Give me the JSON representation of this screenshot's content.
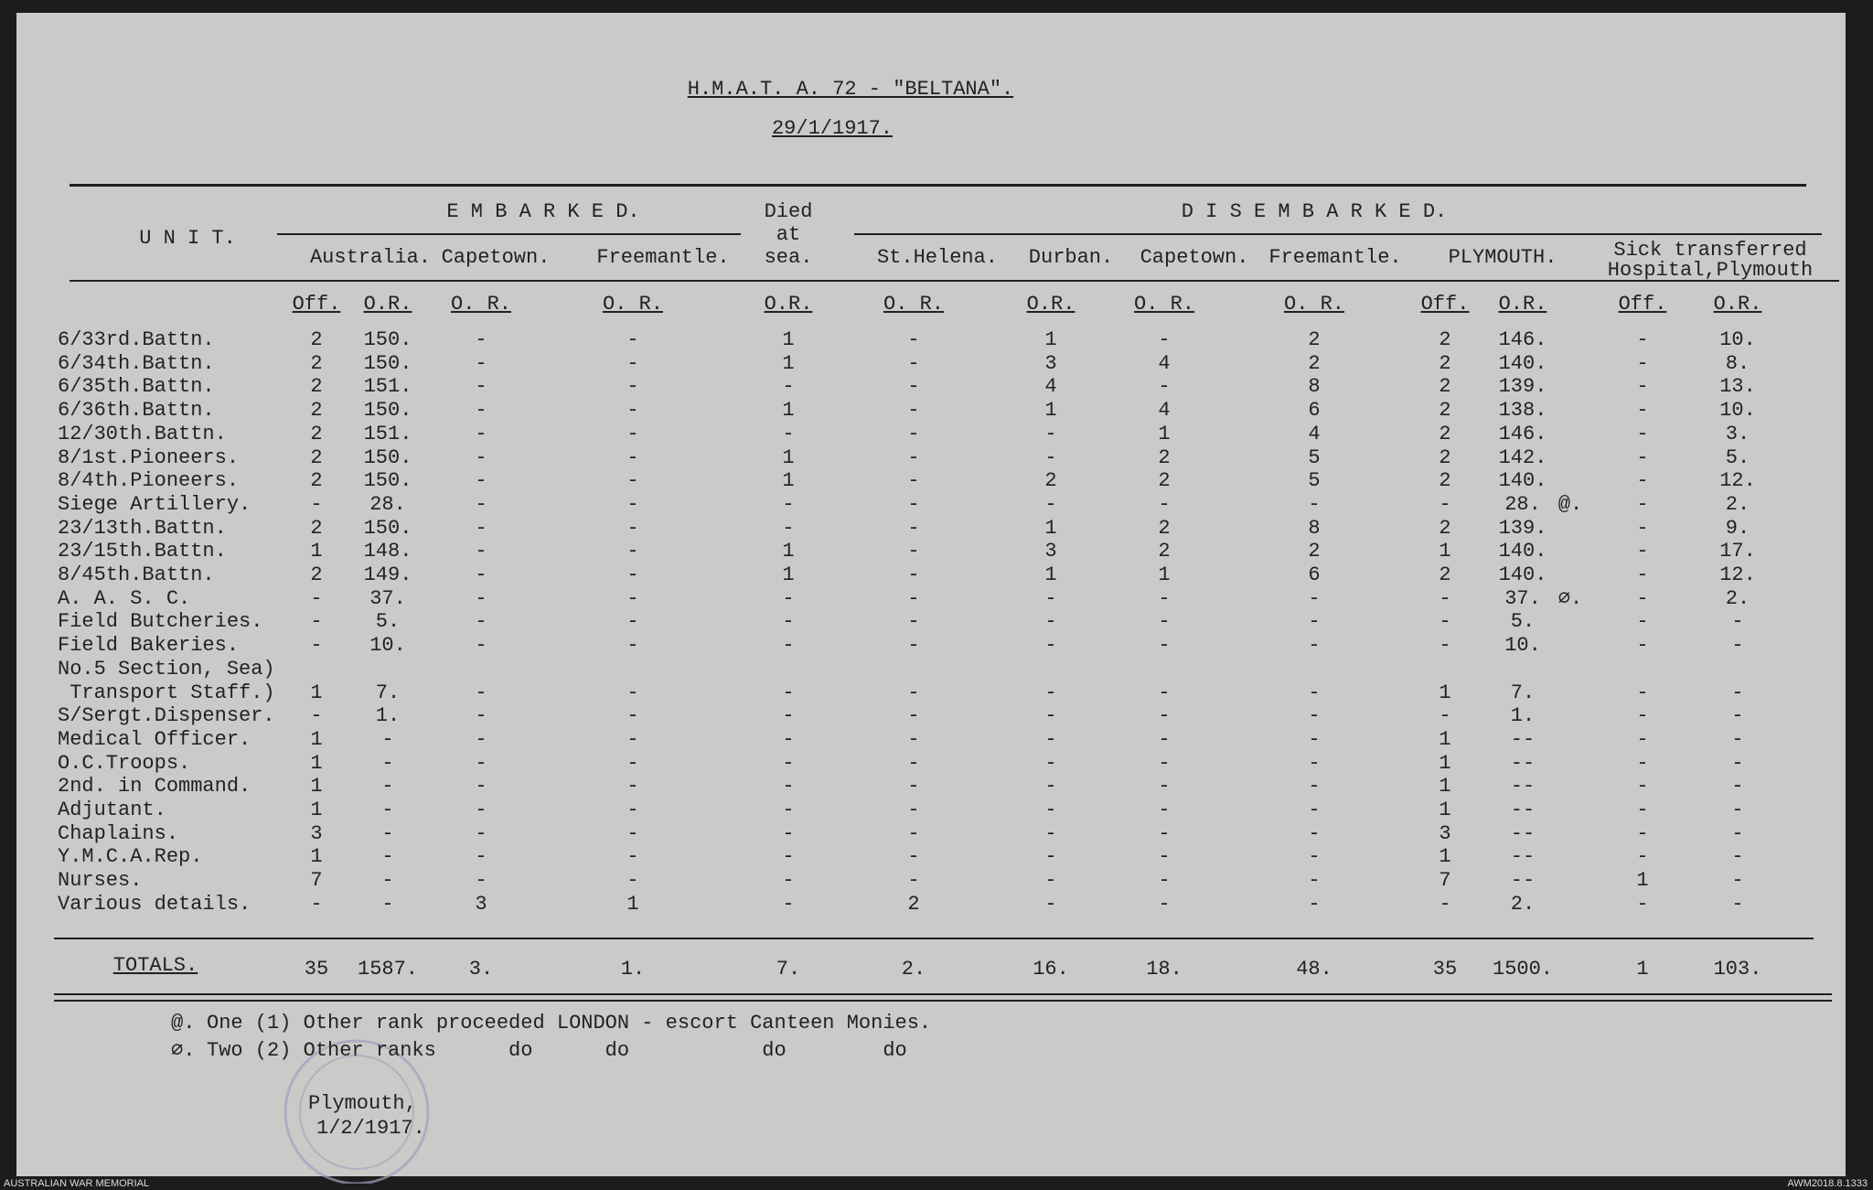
{
  "header": {
    "title": "H.M.A.T. A. 72 - \"BELTANA\".",
    "date": "29/1/1917."
  },
  "columns": {
    "unit": "U N I T.",
    "embarked": "E M B A R K E D.",
    "died": [
      "Died",
      "at",
      "sea."
    ],
    "disembarked": "D I S E M B A R K E D.",
    "sick": [
      "Sick transferred",
      "Hospital,Plymouth"
    ],
    "ports": [
      "Australia.",
      "Capetown.",
      "Freemantle.",
      "St.Helena.",
      "Durban.",
      "Capetown.",
      "Freemantle.",
      "PLYMOUTH."
    ],
    "subheaders": [
      "Off.",
      "O.R.",
      "O. R.",
      "O. R.",
      "O.R.",
      "O. R.",
      "O.R.",
      "O. R.",
      "O. R.",
      "Off.",
      "O.R.",
      "Off.",
      "O.R."
    ]
  },
  "rows": [
    {
      "unit": "6/33rd.Battn.",
      "cells": [
        "2",
        "150.",
        "-",
        "-",
        "1",
        "-",
        "1",
        "-",
        "2",
        "2",
        "146.",
        "-",
        "10."
      ]
    },
    {
      "unit": "6/34th.Battn.",
      "cells": [
        "2",
        "150.",
        "-",
        "-",
        "1",
        "-",
        "3",
        "4",
        "2",
        "2",
        "140.",
        "-",
        "8."
      ]
    },
    {
      "unit": "6/35th.Battn.",
      "cells": [
        "2",
        "151.",
        "-",
        "-",
        "-",
        "-",
        "4",
        "-",
        "8",
        "2",
        "139.",
        "-",
        "13."
      ]
    },
    {
      "unit": "6/36th.Battn.",
      "cells": [
        "2",
        "150.",
        "-",
        "-",
        "1",
        "-",
        "1",
        "4",
        "6",
        "2",
        "138.",
        "-",
        "10."
      ]
    },
    {
      "unit": "12/30th.Battn.",
      "cells": [
        "2",
        "151.",
        "-",
        "-",
        "-",
        "-",
        "-",
        "1",
        "4",
        "2",
        "146.",
        "-",
        "3."
      ]
    },
    {
      "unit": "8/1st.Pioneers.",
      "cells": [
        "2",
        "150.",
        "-",
        "-",
        "1",
        "-",
        "-",
        "2",
        "5",
        "2",
        "142.",
        "-",
        "5."
      ]
    },
    {
      "unit": "8/4th.Pioneers.",
      "cells": [
        "2",
        "150.",
        "-",
        "-",
        "1",
        "-",
        "2",
        "2",
        "5",
        "2",
        "140.",
        "-",
        "12."
      ]
    },
    {
      "unit": "Siege Artillery.",
      "cells": [
        "-",
        "28.",
        "-",
        "-",
        "-",
        "-",
        "-",
        "-",
        "-",
        "-",
        "28.",
        "-",
        "2."
      ],
      "mark": "@."
    },
    {
      "unit": "23/13th.Battn.",
      "cells": [
        "2",
        "150.",
        "-",
        "-",
        "-",
        "-",
        "1",
        "2",
        "8",
        "2",
        "139.",
        "-",
        "9."
      ]
    },
    {
      "unit": "23/15th.Battn.",
      "cells": [
        "1",
        "148.",
        "-",
        "-",
        "1",
        "-",
        "3",
        "2",
        "2",
        "1",
        "140.",
        "-",
        "17."
      ]
    },
    {
      "unit": "8/45th.Battn.",
      "cells": [
        "2",
        "149.",
        "-",
        "-",
        "1",
        "-",
        "1",
        "1",
        "6",
        "2",
        "140.",
        "-",
        "12."
      ]
    },
    {
      "unit": "A. A. S. C.",
      "cells": [
        "-",
        "37.",
        "-",
        "-",
        "-",
        "-",
        "-",
        "-",
        "-",
        "-",
        "37.",
        "-",
        "2."
      ],
      "mark": "∅."
    },
    {
      "unit": "Field Butcheries.",
      "cells": [
        "-",
        "5.",
        "-",
        "-",
        "-",
        "-",
        "-",
        "-",
        "-",
        "-",
        "5.",
        "-",
        "-"
      ]
    },
    {
      "unit": "Field Bakeries.",
      "cells": [
        "-",
        "10.",
        "-",
        "-",
        "-",
        "-",
        "-",
        "-",
        "-",
        "-",
        "10.",
        "-",
        "-"
      ]
    },
    {
      "unit": [
        "No.5 Section, Sea)",
        " Transport Staff.)"
      ],
      "cells": [
        "1",
        "7.",
        "-",
        "-",
        "-",
        "-",
        "-",
        "-",
        "-",
        "1",
        "7.",
        "-",
        "-"
      ]
    },
    {
      "unit": "S/Sergt.Dispenser.",
      "cells": [
        "-",
        "1.",
        "-",
        "-",
        "-",
        "-",
        "-",
        "-",
        "-",
        "-",
        "1.",
        "-",
        "-"
      ]
    },
    {
      "unit": "Medical Officer.",
      "cells": [
        "1",
        "-",
        "-",
        "-",
        "-",
        "-",
        "-",
        "-",
        "-",
        "1",
        "--",
        "-",
        "-"
      ]
    },
    {
      "unit": "O.C.Troops.",
      "cells": [
        "1",
        "-",
        "-",
        "-",
        "-",
        "-",
        "-",
        "-",
        "-",
        "1",
        "--",
        "-",
        "-"
      ]
    },
    {
      "unit": "2nd. in Command.",
      "cells": [
        "1",
        "-",
        "-",
        "-",
        "-",
        "-",
        "-",
        "-",
        "-",
        "1",
        "--",
        "-",
        "-"
      ]
    },
    {
      "unit": "Adjutant.",
      "cells": [
        "1",
        "-",
        "-",
        "-",
        "-",
        "-",
        "-",
        "-",
        "-",
        "1",
        "--",
        "-",
        "-"
      ]
    },
    {
      "unit": "Chaplains.",
      "cells": [
        "3",
        "-",
        "-",
        "-",
        "-",
        "-",
        "-",
        "-",
        "-",
        "3",
        "--",
        "-",
        "-"
      ]
    },
    {
      "unit": "Y.M.C.A.Rep.",
      "cells": [
        "1",
        "-",
        "-",
        "-",
        "-",
        "-",
        "-",
        "-",
        "-",
        "1",
        "--",
        "-",
        "-"
      ]
    },
    {
      "unit": "Nurses.",
      "cells": [
        "7",
        "-",
        "-",
        "-",
        "-",
        "-",
        "-",
        "-",
        "-",
        "7",
        "--",
        "1",
        "-"
      ]
    },
    {
      "unit": "Various details.",
      "cells": [
        "-",
        "-",
        "3",
        "1",
        "-",
        "2",
        "-",
        "-",
        "-",
        "-",
        "2.",
        "-",
        "-"
      ]
    }
  ],
  "totals": {
    "label": "TOTALS.",
    "cells": [
      "35",
      "1587.",
      "3.",
      "1.",
      "7.",
      "2.",
      "16.",
      "18.",
      "48.",
      "35",
      "1500.",
      "1",
      "103."
    ]
  },
  "footnotes": [
    {
      "symbol": "@.",
      "text": "One (1) Other rank proceeded LONDON - escort Canteen Monies."
    },
    {
      "symbol": "∅.",
      "text": "Two (2) Other ranks      do      do           do        do"
    }
  ],
  "signature": [
    "Plymouth,",
    "1/2/1917."
  ],
  "footer": {
    "left": "AUSTRALIAN WAR MEMORIAL",
    "right": "AWM2018.8.1333"
  }
}
